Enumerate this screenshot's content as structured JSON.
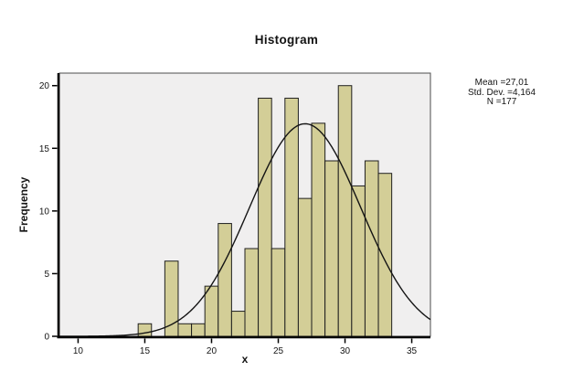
{
  "chart_data": {
    "type": "bar",
    "subtype": "histogram",
    "title": "Histogram",
    "xlabel": "x",
    "ylabel": "Frequency",
    "grid": false,
    "legend": false,
    "bin_width": 1,
    "categories": [
      15,
      16,
      17,
      18,
      19,
      20,
      21,
      22,
      23,
      24,
      25,
      26,
      27,
      28,
      29,
      30,
      31,
      32,
      33
    ],
    "values": [
      1,
      0,
      6,
      1,
      1,
      4,
      9,
      2,
      7,
      19,
      7,
      19,
      11,
      17,
      14,
      20,
      12,
      14,
      13
    ],
    "x_ticks": [
      10,
      15,
      20,
      25,
      30,
      35
    ],
    "y_ticks": [
      0,
      5,
      10,
      15,
      20
    ],
    "xlim": [
      8.6,
      36.4
    ],
    "ylim": [
      0,
      21
    ],
    "curve": {
      "type": "normal",
      "mean": 27.01,
      "std_dev": 4.164,
      "n": 177
    },
    "annotation": {
      "lines": [
        "Mean =27,01",
        "Std. Dev. =4,164",
        "N =177"
      ]
    },
    "colors": {
      "bar_fill": "#d3ce97",
      "bar_border": "#1f1f1f",
      "curve": "#141414",
      "plot_bg": "#f0efef",
      "frame": "#4d4d4d",
      "axis": "#000000",
      "text": "#141414"
    }
  }
}
